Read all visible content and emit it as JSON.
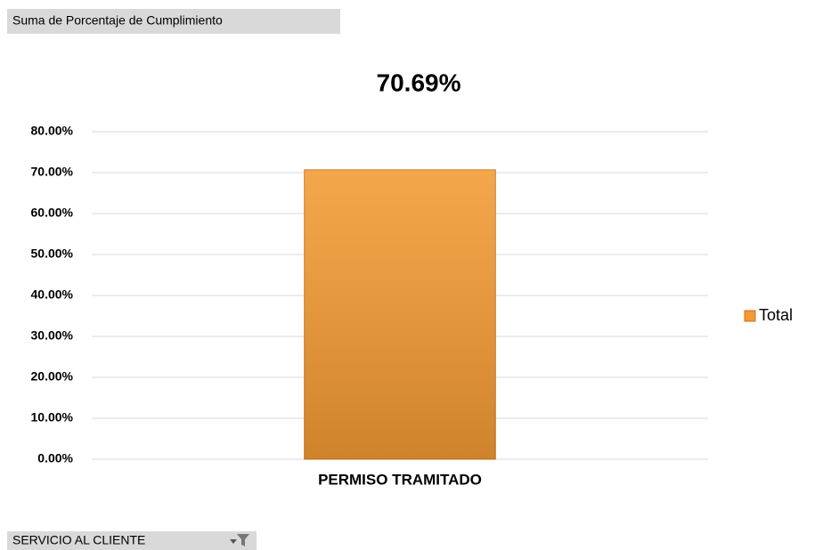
{
  "field_buttons": {
    "value_field": "Suma de Porcentaje de Cumplimiento",
    "filter_field": "SERVICIO AL CLIENTE"
  },
  "chart_data": {
    "type": "bar",
    "title": "70.69%",
    "categories": [
      "PERMISO TRAMITADO"
    ],
    "series": [
      {
        "name": "Total",
        "color": "#f39a32",
        "values": [
          70.69
        ]
      }
    ],
    "ylim": [
      0,
      80
    ],
    "yticks": [
      {
        "value": 0,
        "label": "0.00%"
      },
      {
        "value": 10,
        "label": "10.00%"
      },
      {
        "value": 20,
        "label": "20.00%"
      },
      {
        "value": 30,
        "label": "30.00%"
      },
      {
        "value": 40,
        "label": "40.00%"
      },
      {
        "value": 50,
        "label": "50.00%"
      },
      {
        "value": 60,
        "label": "60.00%"
      },
      {
        "value": 70,
        "label": "70.00%"
      },
      {
        "value": 80,
        "label": "80.00%"
      }
    ],
    "grid": true,
    "legend": "right"
  }
}
